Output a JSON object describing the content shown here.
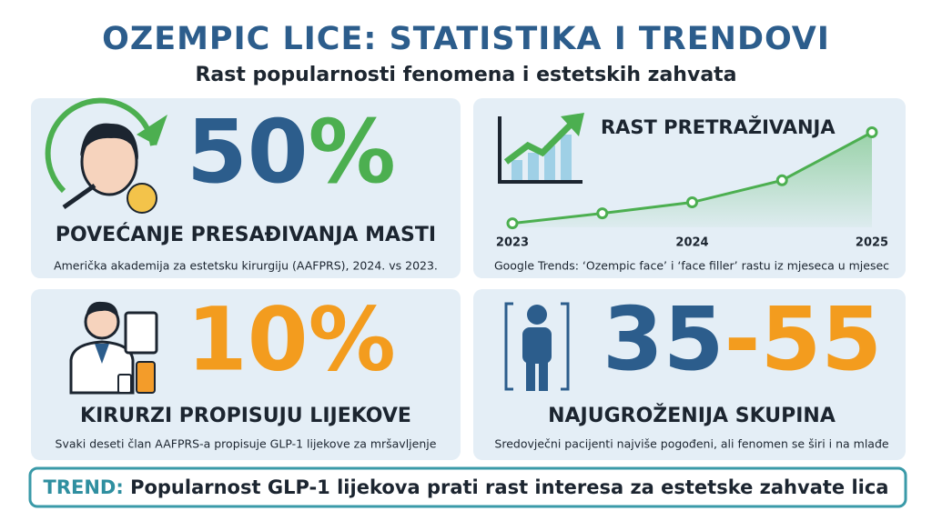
{
  "header": {
    "title": "OZEMPIC LICE: STATISTIKA I TRENDOVI",
    "subtitle": "Rast popularnosti fenomena i estetskih zahvata"
  },
  "panels": [
    {
      "stat_number": "50",
      "stat_unit": "%",
      "heading": "POVEĆANJE PRESAĐIVANJA MASTI",
      "caption": "Američka akademija za estetsku kirurgiju (AAFPRS), 2024. vs 2023."
    },
    {
      "stat": "10%",
      "heading": "KIRURZI PROPISUJU LIJEKOVE",
      "caption": "Svaki deseti član AAFPRS-a propisuje GLP-1 lijekove za mršavljenje"
    },
    {
      "stat_from": "35",
      "stat_to": "-55",
      "heading": "NAJUGROŽENIJA SKUPINA",
      "caption": "Sredovječni pacijenti najviše pogođeni, ali fenomen se širi i na mlađe"
    }
  ],
  "search_panel": {
    "chart": {
      "type": "line",
      "title": "RAST PRETRAŽIVANJA",
      "categories": [
        "2023",
        null,
        "2024",
        null,
        "2025"
      ],
      "values": [
        4,
        14,
        25,
        47,
        95
      ],
      "ylim": [
        0,
        100
      ],
      "color": "#4caf50"
    },
    "caption": "Google Trends: ‘Ozempic face’ i ‘face filler’ rastu iz mjeseca u mjesec"
  },
  "trend": {
    "label": "TREND:",
    "text": "Popularnost GLP-1 lijekova prati rast interesa za estetske zahvate lica"
  }
}
